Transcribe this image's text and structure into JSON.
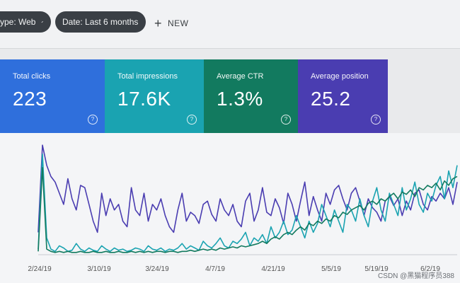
{
  "filters": {
    "type_chip": "ype: Web",
    "date_chip": "Date: Last 6 months",
    "new_label": "NEW"
  },
  "cards": [
    {
      "label": "Total clicks",
      "value": "223",
      "color": "#2f6fdc"
    },
    {
      "label": "Total impressions",
      "value": "17.6K",
      "color": "#1aa3b1"
    },
    {
      "label": "Average CTR",
      "value": "1.3%",
      "color": "#127a5f"
    },
    {
      "label": "Average position",
      "value": "25.2",
      "color": "#4a3db1"
    }
  ],
  "help_glyph": "?",
  "chart_data": {
    "type": "line",
    "x_tick_labels": [
      "2/24/19",
      "3/10/19",
      "3/24/19",
      "4/7/19",
      "4/21/19",
      "5/5/19",
      "5/19/19",
      "6/2/19"
    ],
    "series": [
      {
        "color": "#4a3db1",
        "values": [
          20,
          98,
          80,
          70,
          65,
          55,
          45,
          68,
          50,
          40,
          62,
          60,
          45,
          30,
          20,
          55,
          35,
          50,
          40,
          45,
          30,
          25,
          60,
          40,
          35,
          55,
          30,
          45,
          40,
          50,
          35,
          25,
          20,
          40,
          55,
          30,
          38,
          35,
          28,
          45,
          48,
          36,
          30,
          50,
          40,
          35,
          45,
          30,
          25,
          48,
          55,
          30,
          40,
          60,
          38,
          35,
          50,
          42,
          28,
          55,
          45,
          30,
          48,
          65,
          35,
          52,
          40,
          30,
          55,
          45,
          58,
          62,
          50,
          40,
          55,
          60,
          48,
          35,
          50,
          42,
          38,
          30,
          48,
          52,
          44,
          50,
          35,
          48,
          40,
          55,
          58,
          45,
          40,
          52,
          48,
          55,
          50,
          60,
          45,
          65
        ]
      },
      {
        "color": "#1aa3b1",
        "values": [
          5,
          90,
          15,
          5,
          3,
          8,
          6,
          3,
          4,
          10,
          5,
          3,
          6,
          4,
          3,
          8,
          5,
          3,
          6,
          4,
          5,
          3,
          4,
          6,
          5,
          3,
          8,
          5,
          4,
          6,
          3,
          5,
          4,
          6,
          10,
          5,
          8,
          6,
          4,
          12,
          8,
          6,
          10,
          15,
          8,
          6,
          12,
          10,
          14,
          20,
          8,
          15,
          12,
          18,
          10,
          25,
          15,
          20,
          30,
          18,
          22,
          35,
          25,
          15,
          30,
          20,
          28,
          45,
          35,
          25,
          40,
          30,
          20,
          45,
          40,
          30,
          50,
          35,
          25,
          48,
          60,
          40,
          30,
          55,
          45,
          35,
          60,
          40,
          50,
          65,
          45,
          38,
          55,
          48,
          62,
          70,
          50,
          75,
          60,
          80
        ]
      },
      {
        "color": "#127a5f",
        "values": [
          3,
          78,
          5,
          3,
          2,
          3,
          2,
          3,
          2,
          2,
          3,
          2,
          2,
          3,
          2,
          2,
          3,
          2,
          2,
          3,
          2,
          2,
          3,
          2,
          3,
          2,
          3,
          2,
          3,
          3,
          2,
          3,
          3,
          2,
          3,
          3,
          4,
          3,
          4,
          5,
          4,
          5,
          4,
          6,
          5,
          6,
          7,
          6,
          8,
          7,
          8,
          9,
          10,
          12,
          10,
          14,
          16,
          14,
          18,
          20,
          18,
          22,
          25,
          22,
          28,
          26,
          30,
          28,
          32,
          30,
          35,
          33,
          38,
          36,
          40,
          42,
          44,
          40,
          46,
          48,
          45,
          50,
          48,
          52,
          55,
          50,
          56,
          54,
          58,
          52,
          60,
          58,
          62,
          60,
          64,
          58,
          66,
          62,
          68,
          70
        ]
      }
    ]
  },
  "watermark": "CSDN @黑猫程序员388"
}
